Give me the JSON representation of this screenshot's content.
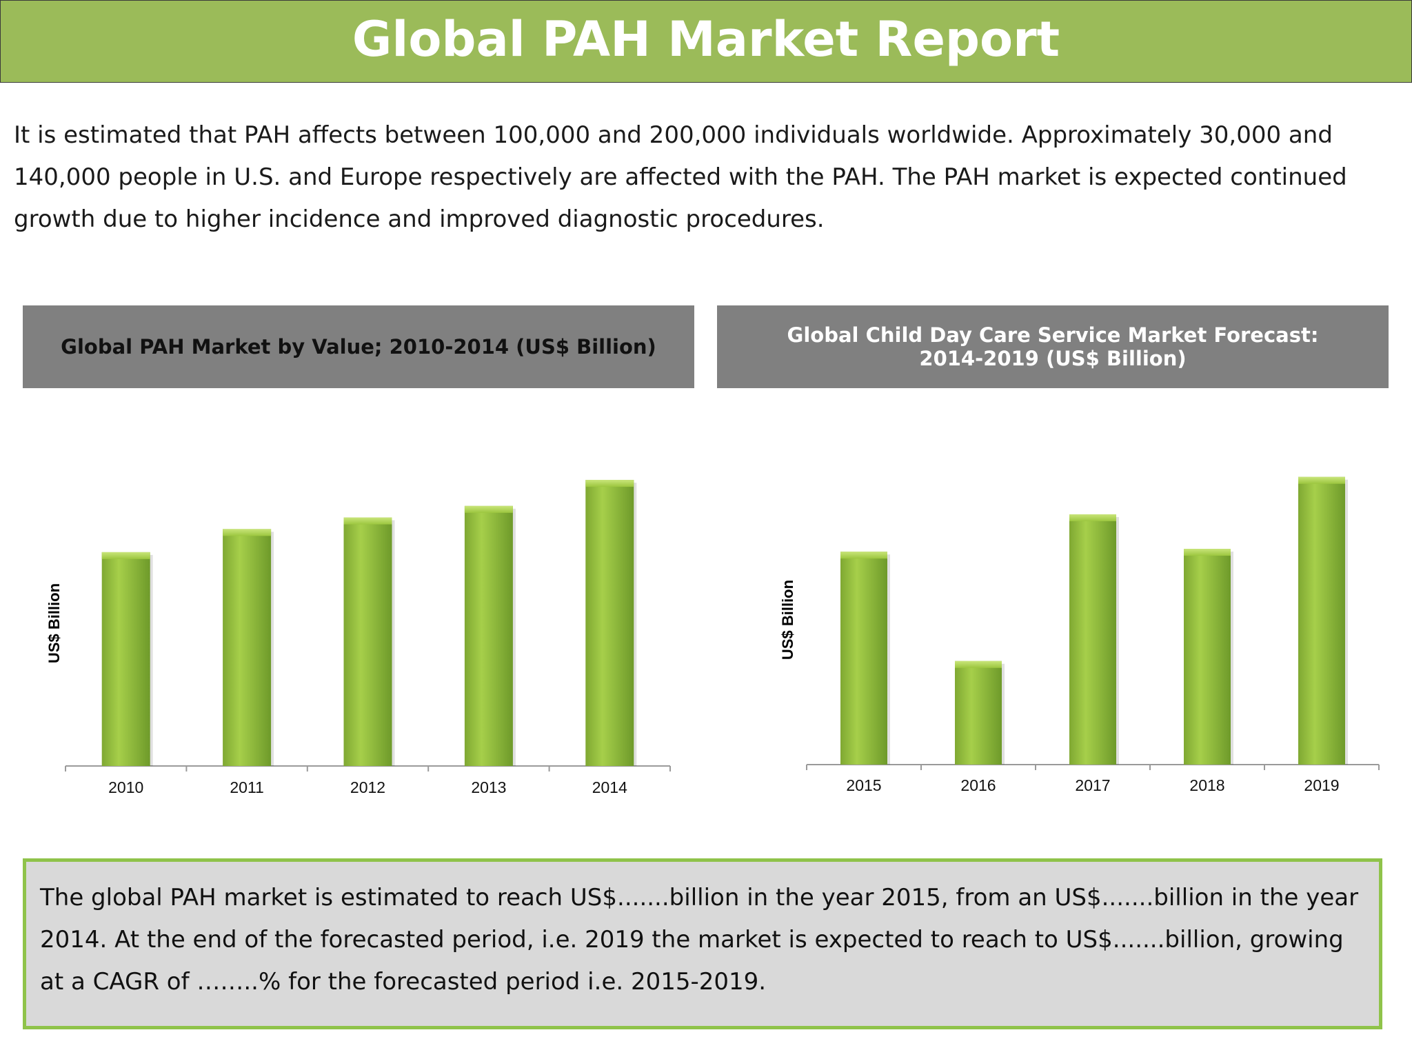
{
  "header": {
    "title": "Global PAH Market Report"
  },
  "intro": {
    "text": "It is estimated that PAH affects between 100,000 and 200,000 individuals worldwide. Approximately 30,000 and 140,000 people in U.S. and Europe respectively are affected with the PAH. The PAH market is expected continued growth due to higher incidence and improved diagnostic procedures."
  },
  "chart_data": [
    {
      "type": "bar",
      "title": "Global PAH Market by Value; 2010-2014 (US$ Billion)",
      "categories": [
        "2010",
        "2011",
        "2012",
        "2013",
        "2014"
      ],
      "values": [
        3.7,
        4.1,
        4.3,
        4.5,
        4.95
      ],
      "xlabel": "",
      "ylabel": "US$ Billion",
      "ylim": [
        0,
        5.5
      ],
      "grid": false,
      "bar_color": "#8fba3a"
    },
    {
      "type": "bar",
      "title": "Global Child Day Care Service Market Forecast:\n2014-2019 (US$ Billion)",
      "categories": [
        "2015",
        "2016",
        "2017",
        "2018",
        "2019"
      ],
      "values": [
        3.7,
        1.8,
        4.35,
        3.75,
        5.0
      ],
      "xlabel": "",
      "ylabel": "US$ Billion",
      "ylim": [
        0,
        5.5
      ],
      "grid": false,
      "bar_color": "#8fba3a"
    }
  ],
  "summary": {
    "text": "The global PAH market is estimated to reach US$.......billion in the year 2015, from an US$.......billion in the year 2014. At the end of the forecasted period, i.e. 2019 the market is expected to reach to US$.......billion, growing at a CAGR of ……..% for the forecasted period i.e. 2015-2019."
  },
  "colors": {
    "header_bg": "#9bbb59",
    "panel_head_bg": "#808080",
    "summary_bg": "#d9d9d9",
    "summary_border": "#8fc34a"
  }
}
